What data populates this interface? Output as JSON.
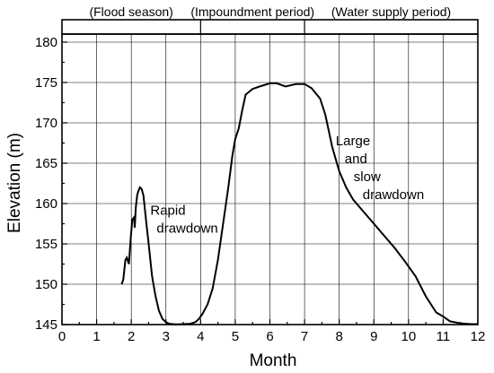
{
  "chart_data": {
    "type": "line",
    "xlabel": "Month",
    "ylabel": "Elevation (m)",
    "xlim": [
      0,
      12
    ],
    "ylim": [
      145,
      181
    ],
    "xticks": [
      0,
      1,
      2,
      3,
      4,
      5,
      6,
      7,
      8,
      9,
      10,
      11,
      12
    ],
    "yticks": [
      145,
      150,
      155,
      160,
      165,
      170,
      175,
      180
    ],
    "grid": true,
    "periods": [
      {
        "label": "(Flood season)",
        "start": 0,
        "end": 4
      },
      {
        "label": "(Impoundment period)",
        "start": 4,
        "end": 7
      },
      {
        "label": "(Water supply period)",
        "start": 7,
        "end": 12
      }
    ],
    "series": [
      {
        "x": [
          1.72,
          1.77,
          1.83,
          1.87,
          1.93,
          1.98,
          2.03,
          2.08,
          2.1,
          2.13,
          2.17,
          2.2,
          2.25,
          2.3,
          2.35,
          2.4,
          2.45,
          2.5,
          2.55,
          2.6,
          2.7,
          2.8,
          2.9,
          3.0,
          3.1,
          3.2,
          3.3,
          3.5,
          3.7,
          3.85,
          3.95,
          4.05,
          4.2,
          4.35,
          4.5,
          4.65,
          4.8,
          4.92,
          5.0,
          5.1,
          5.2,
          5.3,
          5.5,
          5.7,
          6.0,
          6.2,
          6.45,
          6.75,
          7.0,
          7.2,
          7.45,
          7.6,
          7.8,
          8.0,
          8.2,
          8.4,
          8.6,
          8.8,
          9.0,
          9.3,
          9.6,
          9.9,
          10.2,
          10.5,
          10.8,
          11.0,
          11.2,
          11.5,
          11.8,
          12.0
        ],
        "y": [
          150,
          150.6,
          153,
          153.3,
          152.5,
          155.5,
          158,
          158.3,
          157,
          159.5,
          161,
          161.5,
          162,
          161.8,
          161,
          159,
          157,
          155,
          153,
          151,
          148.5,
          146.7,
          145.7,
          145.3,
          145.1,
          145.05,
          145.02,
          145.05,
          145.1,
          145.3,
          145.7,
          146.3,
          147.5,
          149.5,
          153,
          157.5,
          162,
          166,
          168,
          169.3,
          171.5,
          173.5,
          174.2,
          174.5,
          174.9,
          174.9,
          174.5,
          174.8,
          174.8,
          174.3,
          173,
          171,
          167,
          164,
          162,
          160.5,
          159.5,
          158.5,
          157.5,
          156,
          154.5,
          152.8,
          151,
          148.5,
          146.5,
          146,
          145.4,
          145.15,
          145.05,
          145.05
        ]
      }
    ],
    "annotations": [
      {
        "lines": [
          "Rapid",
          "drawdown"
        ],
        "x": 2.55,
        "y": 158.6
      },
      {
        "lines": [
          "Large",
          "and",
          "slow",
          "drawdown"
        ],
        "x": 7.9,
        "y": 167.2
      }
    ]
  }
}
